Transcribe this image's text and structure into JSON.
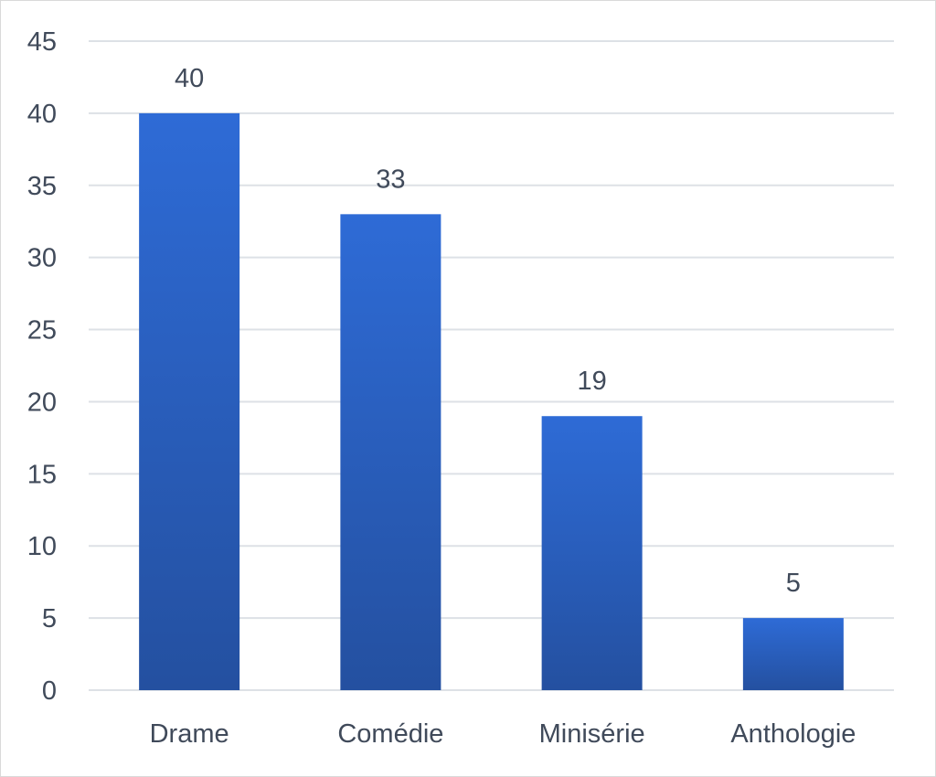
{
  "chart_data": {
    "type": "bar",
    "title": "",
    "xlabel": "",
    "ylabel": "",
    "categories": [
      "Drame",
      "Comédie",
      "Minisérie",
      "Anthologie"
    ],
    "values": [
      40,
      33,
      19,
      5
    ],
    "ylim": [
      0,
      45
    ],
    "yticks": [
      0,
      5,
      10,
      15,
      20,
      25,
      30,
      35,
      40,
      45
    ],
    "grid": true,
    "legend": "none",
    "data_labels": true,
    "colors": {
      "bar_top": "#2e6bd6",
      "bar_bottom": "#2450a0",
      "gridline": "#dde1e6",
      "text": "#404a5a",
      "border": "#d9d9d9"
    }
  }
}
